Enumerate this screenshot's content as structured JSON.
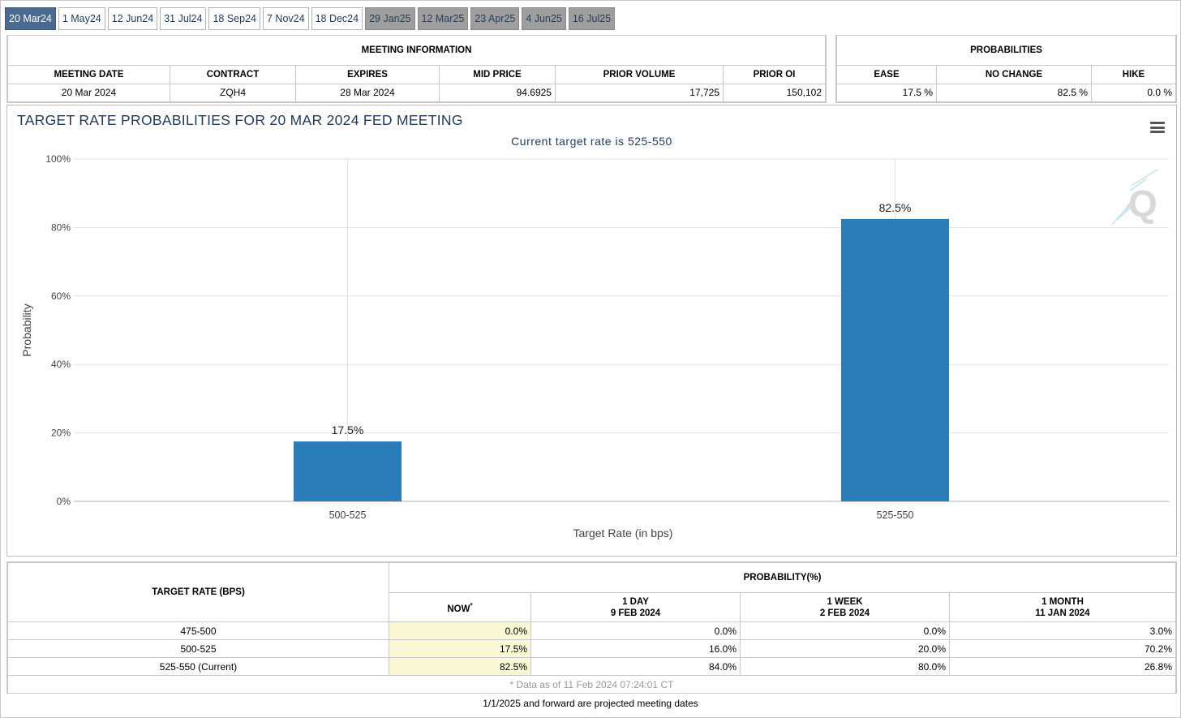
{
  "tabs": [
    {
      "label": "20 Mar24",
      "state": "active"
    },
    {
      "label": "1 May24",
      "state": "normal"
    },
    {
      "label": "12 Jun24",
      "state": "normal"
    },
    {
      "label": "31 Jul24",
      "state": "normal"
    },
    {
      "label": "18 Sep24",
      "state": "normal"
    },
    {
      "label": "7 Nov24",
      "state": "normal"
    },
    {
      "label": "18 Dec24",
      "state": "normal"
    },
    {
      "label": "29 Jan25",
      "state": "future"
    },
    {
      "label": "12 Mar25",
      "state": "future"
    },
    {
      "label": "23 Apr25",
      "state": "future"
    },
    {
      "label": "4 Jun25",
      "state": "future"
    },
    {
      "label": "16 Jul25",
      "state": "future"
    }
  ],
  "meeting_info": {
    "heading": "MEETING INFORMATION",
    "columns": [
      "MEETING DATE",
      "CONTRACT",
      "EXPIRES",
      "MID PRICE",
      "PRIOR VOLUME",
      "PRIOR OI"
    ],
    "values": [
      "20 Mar 2024",
      "ZQH4",
      "28 Mar 2024",
      "94.6925",
      "17,725",
      "150,102"
    ]
  },
  "probabilities": {
    "heading": "PROBABILITIES",
    "columns": [
      "EASE",
      "NO CHANGE",
      "HIKE"
    ],
    "values": [
      "17.5 %",
      "82.5 %",
      "0.0 %"
    ]
  },
  "chart": {
    "title": "TARGET RATE PROBABILITIES FOR 20 MAR 2024 FED MEETING",
    "subtitle": "Current target rate is 525-550",
    "menu_icon": "hamburger-menu-icon",
    "logo_icon": "q-logo-icon",
    "bar_color": "#2a7db9"
  },
  "chart_data": {
    "type": "bar",
    "title": "TARGET RATE PROBABILITIES FOR 20 MAR 2024 FED MEETING",
    "subtitle": "Current target rate is 525-550",
    "xlabel": "Target Rate (in bps)",
    "ylabel": "Probability",
    "categories": [
      "500-525",
      "525-550"
    ],
    "values": [
      17.5,
      82.5
    ],
    "data_labels": [
      "17.5%",
      "82.5%"
    ],
    "ylim": [
      0,
      100
    ],
    "yticks": [
      "0%",
      "20%",
      "40%",
      "60%",
      "80%",
      "100%"
    ],
    "grid": true,
    "legend": "none"
  },
  "prob_table": {
    "col_target": "TARGET RATE (BPS)",
    "col_prob": "PROBABILITY(%)",
    "sub_now": "NOW",
    "sub_now_mark": "*",
    "sub_1day": "1 DAY",
    "sub_1day_date": "9 FEB 2024",
    "sub_1week": "1 WEEK",
    "sub_1week_date": "2 FEB 2024",
    "sub_1month": "1 MONTH",
    "sub_1month_date": "11 JAN 2024",
    "rows": [
      {
        "rate": "475-500",
        "now": "0.0%",
        "day": "0.0%",
        "week": "0.0%",
        "month": "3.0%"
      },
      {
        "rate": "500-525",
        "now": "17.5%",
        "day": "16.0%",
        "week": "20.0%",
        "month": "70.2%"
      },
      {
        "rate": "525-550 (Current)",
        "now": "82.5%",
        "day": "84.0%",
        "week": "80.0%",
        "month": "26.8%"
      }
    ],
    "note": "* Data as of 11 Feb 2024 07:24:01 CT"
  },
  "footer": "1/1/2025 and forward are projected meeting dates"
}
